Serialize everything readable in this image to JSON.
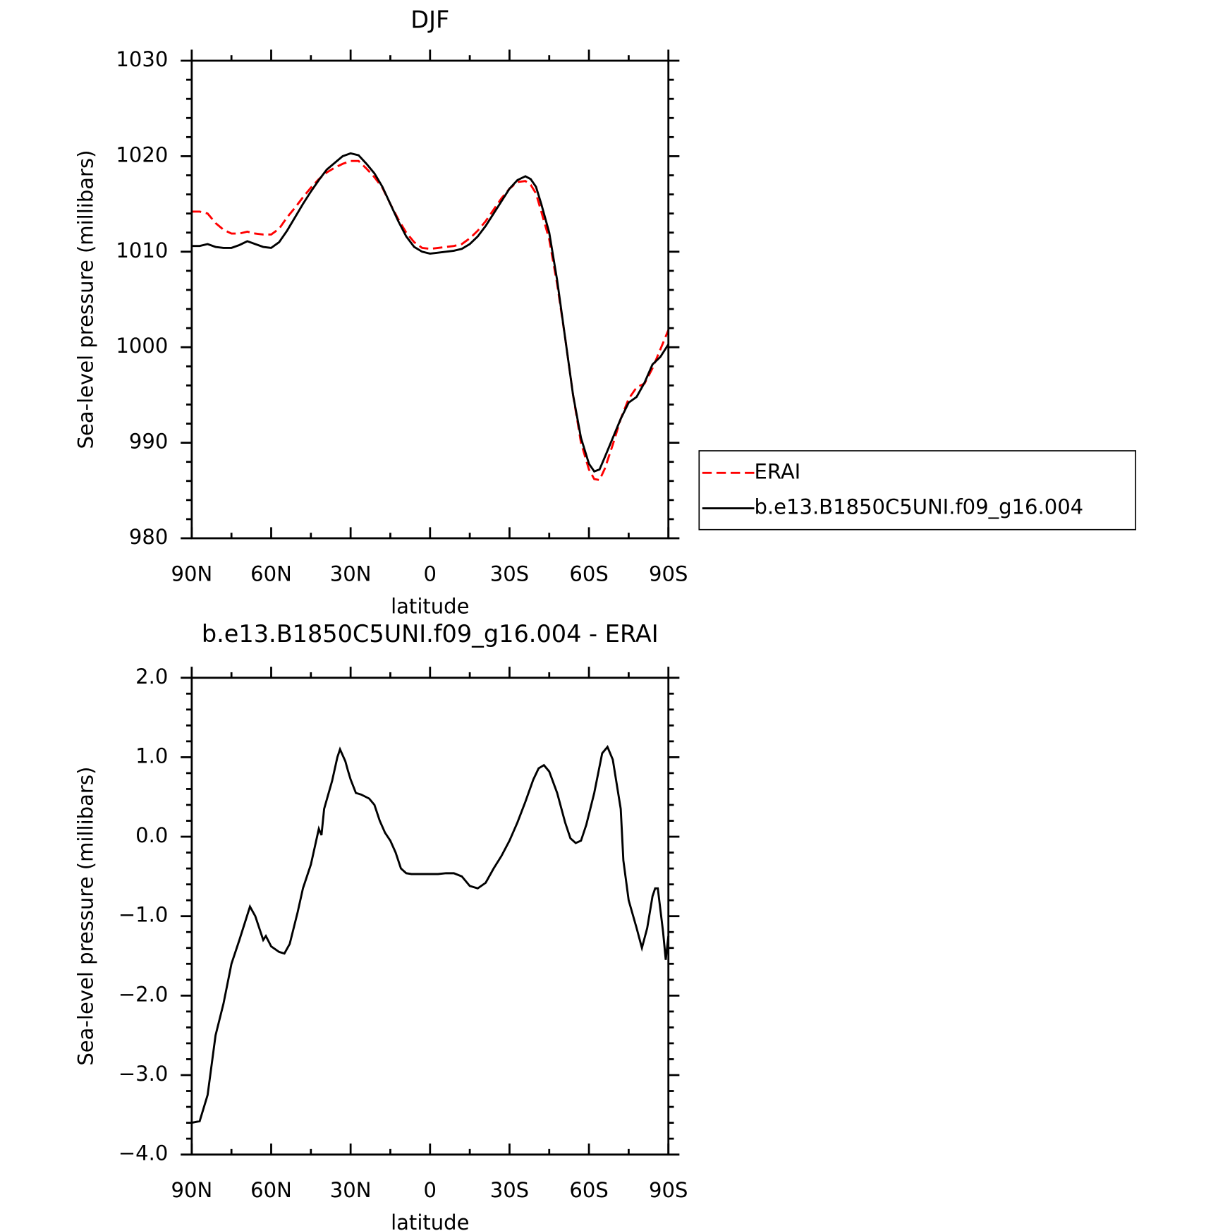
{
  "chart_data": [
    {
      "type": "line",
      "title": "DJF",
      "xlabel": "latitude",
      "ylabel": "Sea-level pressure (millibars)",
      "xlim": [
        90,
        -90
      ],
      "xticks": [
        {
          "value": 90,
          "label": "90N"
        },
        {
          "value": 60,
          "label": "60N"
        },
        {
          "value": 30,
          "label": "30N"
        },
        0,
        {
          "value": -30,
          "label": "30S"
        },
        {
          "value": -60,
          "label": "60S"
        },
        {
          "value": -90,
          "label": "90S"
        }
      ],
      "ylim": [
        980,
        1030
      ],
      "yticks": [
        980,
        990,
        1000,
        1010,
        1020,
        1030
      ],
      "legend": "outside right",
      "x": [
        90,
        87,
        84,
        81,
        78,
        75,
        72,
        69,
        66,
        63,
        60,
        57,
        54,
        51,
        48,
        45,
        42,
        39,
        36,
        33,
        30,
        27,
        24,
        21,
        18,
        15,
        12,
        9,
        6,
        3,
        0,
        -3,
        -6,
        -9,
        -12,
        -15,
        -18,
        -21,
        -24,
        -27,
        -30,
        -33,
        -36,
        -38,
        -40,
        -42,
        -45,
        -48,
        -51,
        -54,
        -57,
        -60,
        -62,
        -64,
        -66,
        -69,
        -72,
        -75,
        -78,
        -81,
        -84,
        -87,
        -90
      ],
      "series": [
        {
          "name": "ERAI",
          "color": "#ff0000",
          "style": "dashed",
          "values": [
            1014.2,
            1014.2,
            1014.0,
            1013.0,
            1012.3,
            1011.9,
            1011.9,
            1012.1,
            1011.9,
            1011.8,
            1011.8,
            1012.4,
            1013.6,
            1014.6,
            1015.7,
            1016.7,
            1017.6,
            1018.3,
            1018.8,
            1019.2,
            1019.5,
            1019.5,
            1018.7,
            1017.8,
            1016.7,
            1015.0,
            1013.4,
            1012.0,
            1011.0,
            1010.4,
            1010.3,
            1010.4,
            1010.5,
            1010.6,
            1010.8,
            1011.4,
            1012.2,
            1013.2,
            1014.4,
            1015.6,
            1016.6,
            1017.3,
            1017.4,
            1017.0,
            1016.1,
            1014.2,
            1011.3,
            1006.6,
            1001.0,
            995.0,
            990.0,
            987.2,
            986.2,
            986.1,
            987.3,
            989.8,
            992.5,
            994.6,
            995.8,
            996.2,
            997.8,
            999.8,
            1001.8
          ]
        },
        {
          "name": "b.e13.B1850C5UNI.f09_g16.004",
          "color": "#000000",
          "style": "solid",
          "values": [
            1010.6,
            1010.6,
            1010.8,
            1010.5,
            1010.4,
            1010.4,
            1010.7,
            1011.1,
            1010.8,
            1010.5,
            1010.4,
            1011.0,
            1012.2,
            1013.6,
            1015.0,
            1016.3,
            1017.5,
            1018.6,
            1019.3,
            1020.0,
            1020.3,
            1020.1,
            1019.2,
            1018.2,
            1016.8,
            1015.0,
            1013.2,
            1011.6,
            1010.5,
            1010.0,
            1009.8,
            1009.9,
            1010.0,
            1010.1,
            1010.3,
            1010.8,
            1011.6,
            1012.7,
            1014.0,
            1015.3,
            1016.6,
            1017.5,
            1017.9,
            1017.6,
            1016.8,
            1015.0,
            1012.0,
            1007.0,
            1001.0,
            995.0,
            990.5,
            987.8,
            987.0,
            987.2,
            988.5,
            990.5,
            992.5,
            994.2,
            994.8,
            996.3,
            998.2,
            999.0,
            1000.3
          ]
        }
      ]
    },
    {
      "type": "line",
      "title": "b.e13.B1850C5UNI.f09_g16.004 - ERAI",
      "xlabel": "latitude",
      "ylabel": "Sea-level pressure (millibars)",
      "xlim": [
        90,
        -90
      ],
      "xticks": [
        {
          "value": 90,
          "label": "90N"
        },
        {
          "value": 60,
          "label": "60N"
        },
        {
          "value": 30,
          "label": "30N"
        },
        0,
        {
          "value": -30,
          "label": "30S"
        },
        {
          "value": -60,
          "label": "60S"
        },
        {
          "value": -90,
          "label": "90S"
        }
      ],
      "ylim": [
        -4,
        2
      ],
      "yticks": [
        {
          "value": -4,
          "label": "−4.0"
        },
        {
          "value": -3,
          "label": "−3.0"
        },
        {
          "value": -2,
          "label": "−2.0"
        },
        {
          "value": -1,
          "label": "−1.0"
        },
        {
          "value": 0,
          "label": "0.0"
        },
        {
          "value": 1,
          "label": "1.0"
        },
        {
          "value": 2,
          "label": "2.0"
        }
      ],
      "x": [
        90,
        87,
        84,
        81,
        78,
        75,
        72,
        68,
        66,
        63,
        62,
        60,
        57,
        55,
        53,
        50,
        48,
        46,
        45,
        43,
        42,
        41,
        40,
        37,
        35,
        34,
        32,
        31,
        30,
        28,
        26,
        23,
        21,
        19,
        17,
        15,
        13,
        11,
        9,
        7,
        3,
        0,
        -3,
        -6,
        -9,
        -12,
        -15,
        -18,
        -21,
        -24,
        -27,
        -30,
        -33,
        -36,
        -39,
        -41,
        -43,
        -45,
        -48,
        -51,
        -53,
        -55,
        -57,
        -59,
        -62,
        -65,
        -67,
        -69,
        -72,
        -73,
        -75,
        -78,
        -80,
        -82,
        -84,
        -85,
        -86,
        -88,
        -89,
        -90
      ],
      "series": [
        {
          "color": "#000000",
          "style": "solid",
          "values": [
            -3.6,
            -3.58,
            -3.25,
            -2.5,
            -2.1,
            -1.6,
            -1.3,
            -0.88,
            -1.0,
            -1.3,
            -1.25,
            -1.38,
            -1.45,
            -1.47,
            -1.35,
            -0.95,
            -0.65,
            -0.45,
            -0.35,
            -0.05,
            0.1,
            0.02,
            0.35,
            0.7,
            1.0,
            1.1,
            0.95,
            0.83,
            0.72,
            0.55,
            0.53,
            0.48,
            0.4,
            0.2,
            0.05,
            -0.05,
            -0.2,
            -0.4,
            -0.46,
            -0.47,
            -0.47,
            -0.47,
            -0.47,
            -0.46,
            -0.46,
            -0.5,
            -0.62,
            -0.65,
            -0.58,
            -0.4,
            -0.24,
            -0.05,
            0.18,
            0.44,
            0.72,
            0.86,
            0.9,
            0.82,
            0.55,
            0.18,
            -0.02,
            -0.08,
            -0.05,
            0.15,
            0.55,
            1.05,
            1.13,
            0.97,
            0.35,
            -0.3,
            -0.8,
            -1.15,
            -1.4,
            -1.15,
            -0.75,
            -0.65,
            -0.65,
            -1.2,
            -1.55,
            -1.25
          ]
        }
      ]
    }
  ]
}
